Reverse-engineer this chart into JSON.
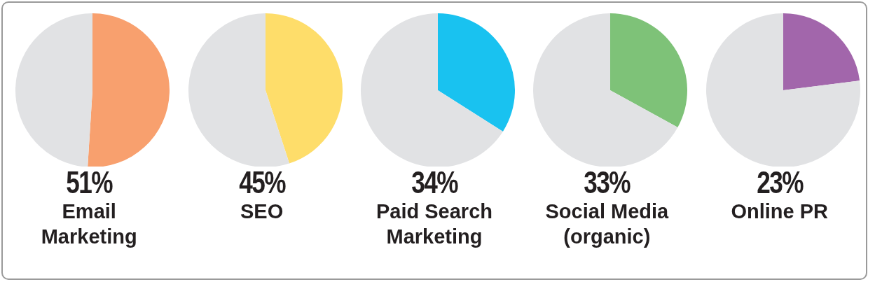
{
  "chart_data": [
    {
      "type": "pie",
      "title": "Email Marketing",
      "annotations": [
        "51%"
      ],
      "categories": [
        null,
        null
      ],
      "values": [
        51,
        49
      ],
      "colors": [
        "#f8a06e",
        "#e1e2e4"
      ]
    },
    {
      "type": "pie",
      "title": "SEO",
      "annotations": [
        "45%"
      ],
      "categories": [
        null,
        null
      ],
      "values": [
        45,
        55
      ],
      "colors": [
        "#fedd6a",
        "#e1e2e4"
      ]
    },
    {
      "type": "pie",
      "title": "Paid Search Marketing",
      "annotations": [
        "34%"
      ],
      "categories": [
        null,
        null
      ],
      "values": [
        34,
        66
      ],
      "colors": [
        "#19c2f0",
        "#e1e2e4"
      ]
    },
    {
      "type": "pie",
      "title": "Social Media (organic)",
      "annotations": [
        "33%"
      ],
      "categories": [
        null,
        null
      ],
      "values": [
        33,
        67
      ],
      "colors": [
        "#7ec278",
        "#e1e2e4"
      ]
    },
    {
      "type": "pie",
      "title": "Online PR",
      "annotations": [
        "23%"
      ],
      "categories": [
        null,
        null
      ],
      "values": [
        23,
        77
      ],
      "colors": [
        "#a266ab",
        "#e1e2e4"
      ]
    }
  ]
}
